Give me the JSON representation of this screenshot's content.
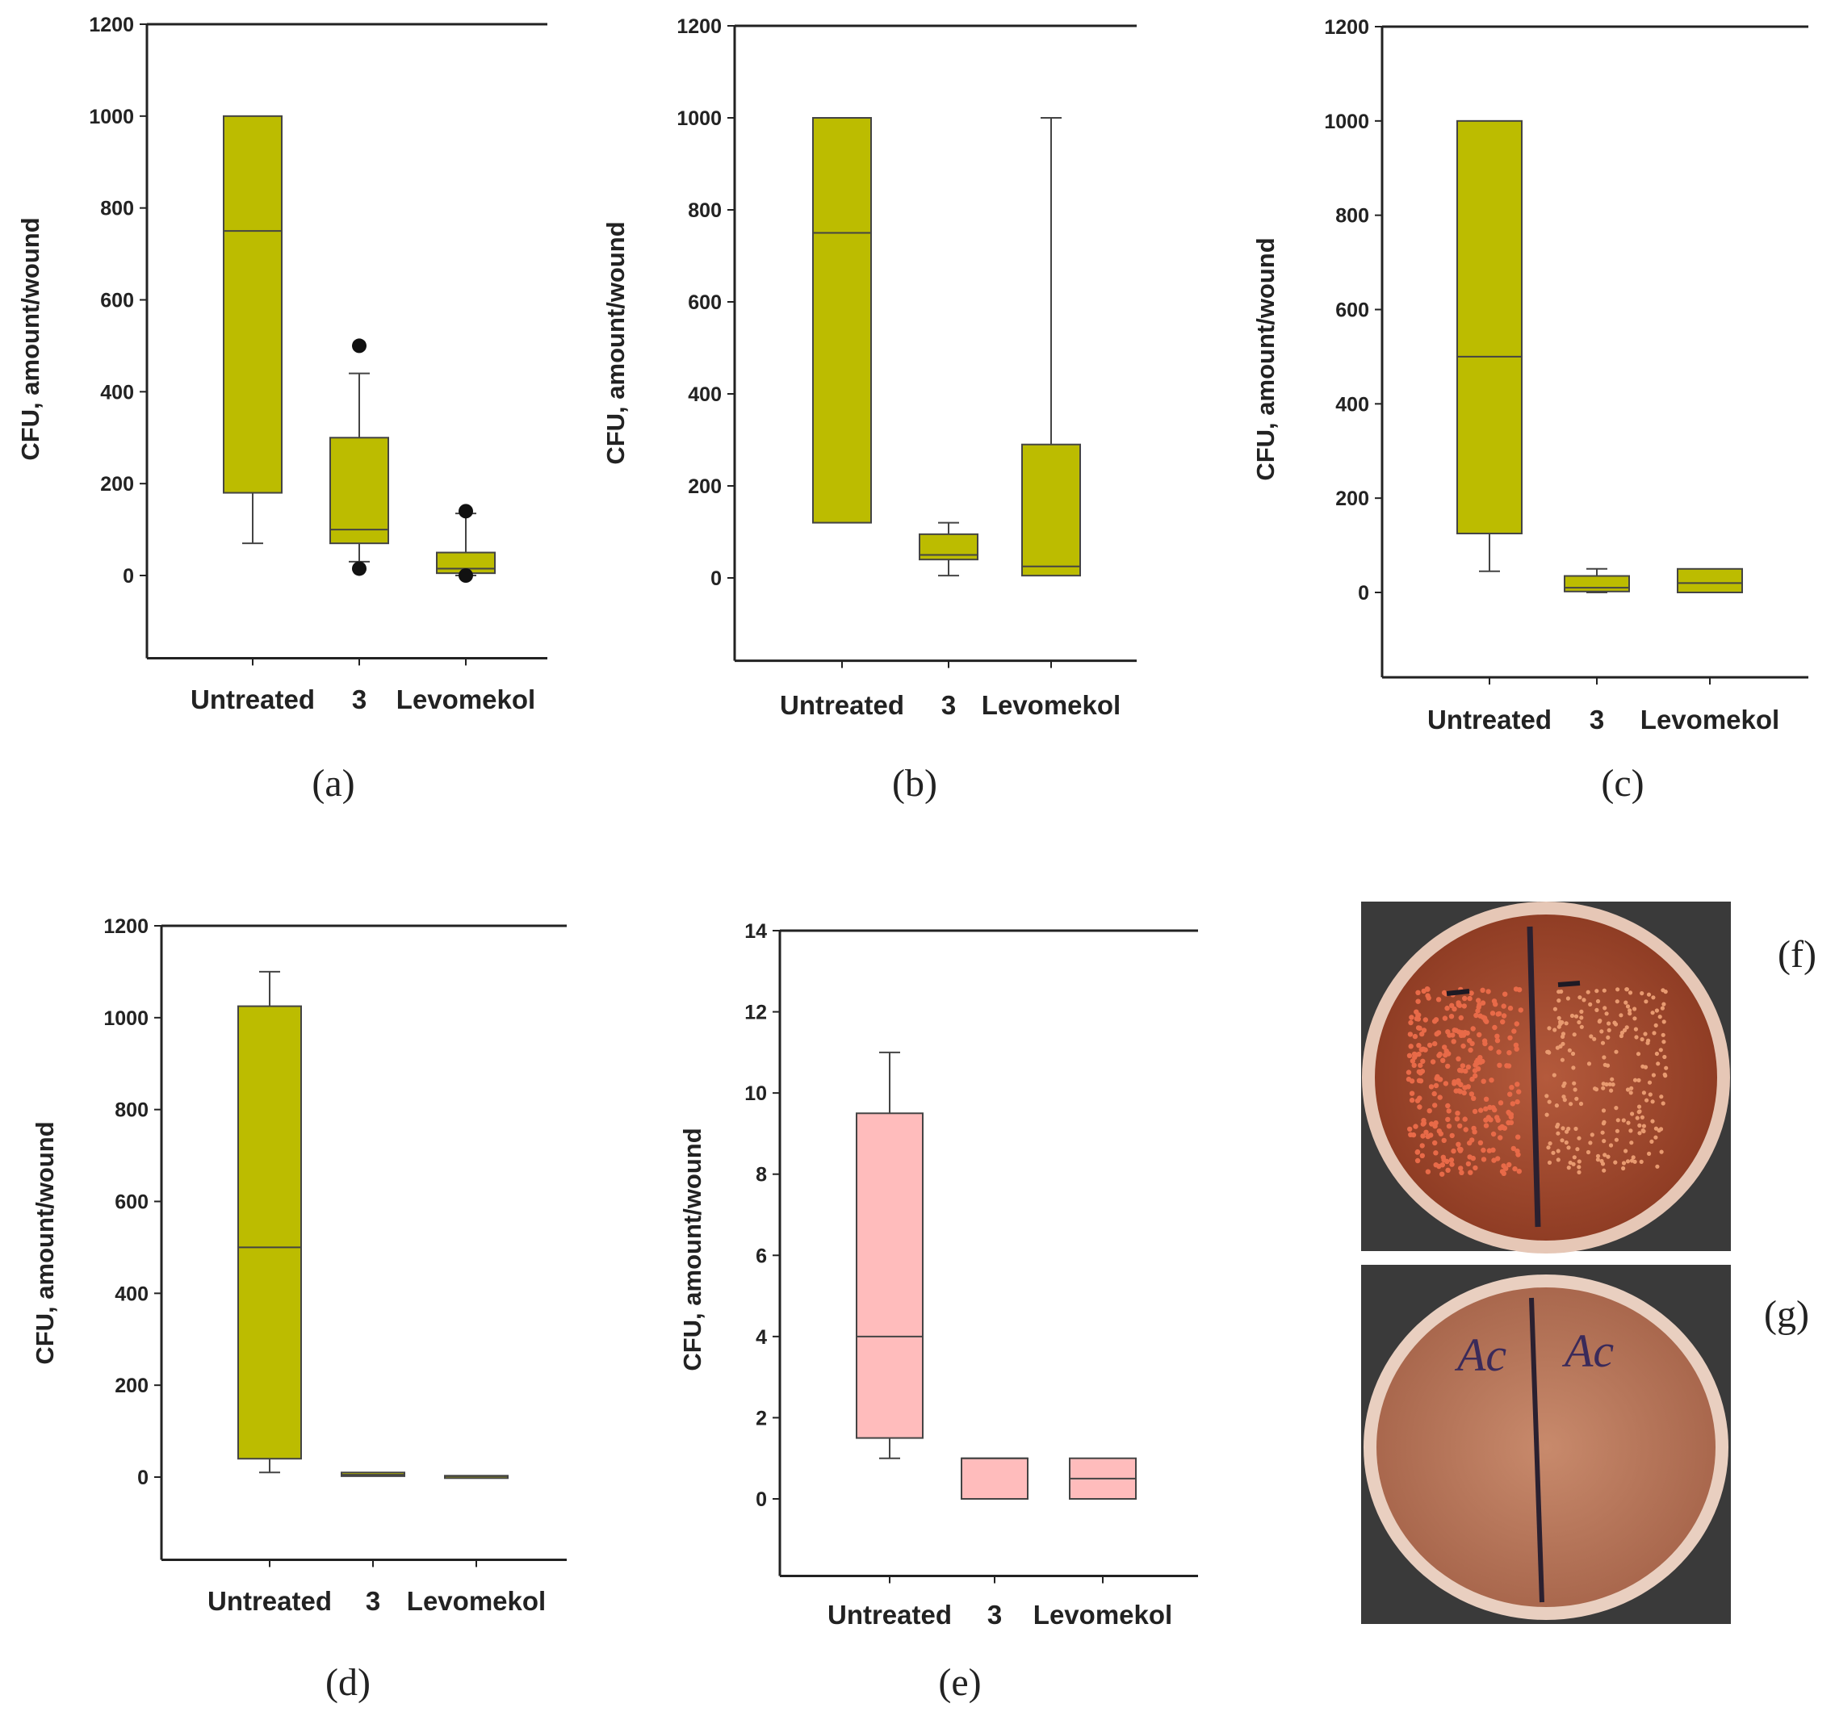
{
  "colors": {
    "olive": "#bcbc00",
    "pink": "#ffbcbc",
    "axis": "#222222",
    "plate_bg": "#3b3b3b"
  },
  "chart_data": [
    {
      "panel": "(a)",
      "type": "box",
      "ylabel": "CFU, amount/wound",
      "ylim": [
        -180,
        1200
      ],
      "yticks": [
        0,
        200,
        400,
        600,
        800,
        1000,
        1200
      ],
      "categories": [
        "Untreated",
        "3",
        "Levomekol"
      ],
      "fill": "#bcbc00",
      "boxes": [
        {
          "category": "Untreated",
          "q1": 180,
          "median": 750,
          "q3": 1000,
          "whisker_low": 70,
          "whisker_high": 1000,
          "outliers": []
        },
        {
          "category": "3",
          "q1": 70,
          "median": 100,
          "q3": 300,
          "whisker_low": 30,
          "whisker_high": 440,
          "outliers": [
            500,
            15
          ]
        },
        {
          "category": "Levomekol",
          "q1": 5,
          "median": 15,
          "q3": 50,
          "whisker_low": 0,
          "whisker_high": 135,
          "outliers": [
            140,
            0
          ]
        }
      ]
    },
    {
      "panel": "(b)",
      "type": "box",
      "ylabel": "CFU, amount/wound",
      "ylim": [
        -180,
        1200
      ],
      "yticks": [
        0,
        200,
        400,
        600,
        800,
        1000,
        1200
      ],
      "categories": [
        "Untreated",
        "3",
        "Levomekol"
      ],
      "fill": "#bcbc00",
      "boxes": [
        {
          "category": "Untreated",
          "q1": 120,
          "median": 750,
          "q3": 1000,
          "whisker_low": 120,
          "whisker_high": 1000,
          "outliers": []
        },
        {
          "category": "3",
          "q1": 40,
          "median": 50,
          "q3": 95,
          "whisker_low": 5,
          "whisker_high": 120,
          "outliers": []
        },
        {
          "category": "Levomekol",
          "q1": 5,
          "median": 25,
          "q3": 290,
          "whisker_low": 5,
          "whisker_high": 1000,
          "outliers": []
        }
      ]
    },
    {
      "panel": "(c)",
      "type": "box",
      "ylabel": "CFU, amount/wound",
      "ylim": [
        -180,
        1200
      ],
      "yticks": [
        0,
        200,
        400,
        600,
        800,
        1000,
        1200
      ],
      "categories": [
        "Untreated",
        "3",
        "Levomekol"
      ],
      "fill": "#bcbc00",
      "boxes": [
        {
          "category": "Untreated",
          "q1": 125,
          "median": 500,
          "q3": 1000,
          "whisker_low": 45,
          "whisker_high": 1000,
          "outliers": []
        },
        {
          "category": "3",
          "q1": 2,
          "median": 10,
          "q3": 35,
          "whisker_low": 0,
          "whisker_high": 50,
          "outliers": []
        },
        {
          "category": "Levomekol",
          "q1": 0,
          "median": 20,
          "q3": 50,
          "whisker_low": 0,
          "whisker_high": 50,
          "outliers": []
        }
      ]
    },
    {
      "panel": "(d)",
      "type": "box",
      "ylabel": "CFU, amount/wound",
      "ylim": [
        -180,
        1200
      ],
      "yticks": [
        0,
        200,
        400,
        600,
        800,
        1000,
        1200
      ],
      "categories": [
        "Untreated",
        "3",
        "Levomekol"
      ],
      "fill": "#bcbc00",
      "boxes": [
        {
          "category": "Untreated",
          "q1": 40,
          "median": 500,
          "q3": 1025,
          "whisker_low": 10,
          "whisker_high": 1100,
          "outliers": []
        },
        {
          "category": "3",
          "q1": 2,
          "median": 5,
          "q3": 10,
          "whisker_low": 2,
          "whisker_high": 10,
          "outliers": []
        },
        {
          "category": "Levomekol",
          "q1": 0,
          "median": 2,
          "q3": 3,
          "whisker_low": 0,
          "whisker_high": 3,
          "outliers": []
        }
      ]
    },
    {
      "panel": "(e)",
      "type": "box",
      "ylabel": "CFU, amount/wound",
      "ylim": [
        -1.9,
        14
      ],
      "yticks": [
        0,
        2,
        4,
        6,
        8,
        10,
        12,
        14
      ],
      "categories": [
        "Untreated",
        "3",
        "Levomekol"
      ],
      "fill": "#ffbcbc",
      "boxes": [
        {
          "category": "Untreated",
          "q1": 1.5,
          "median": 4,
          "q3": 9.5,
          "whisker_low": 1,
          "whisker_high": 11,
          "outliers": []
        },
        {
          "category": "3",
          "q1": 0,
          "median": 1,
          "q3": 1,
          "whisker_low": 0,
          "whisker_high": 1,
          "outliers": []
        },
        {
          "category": "Levomekol",
          "q1": 0,
          "median": 0.5,
          "q3": 1,
          "whisker_low": 0,
          "whisker_high": 1,
          "outliers": []
        }
      ]
    }
  ],
  "photos": [
    {
      "label": "(f)",
      "description_marks": []
    },
    {
      "label": "(g)",
      "marker_text_left": "Ac",
      "marker_text_right": "Ac"
    }
  ]
}
